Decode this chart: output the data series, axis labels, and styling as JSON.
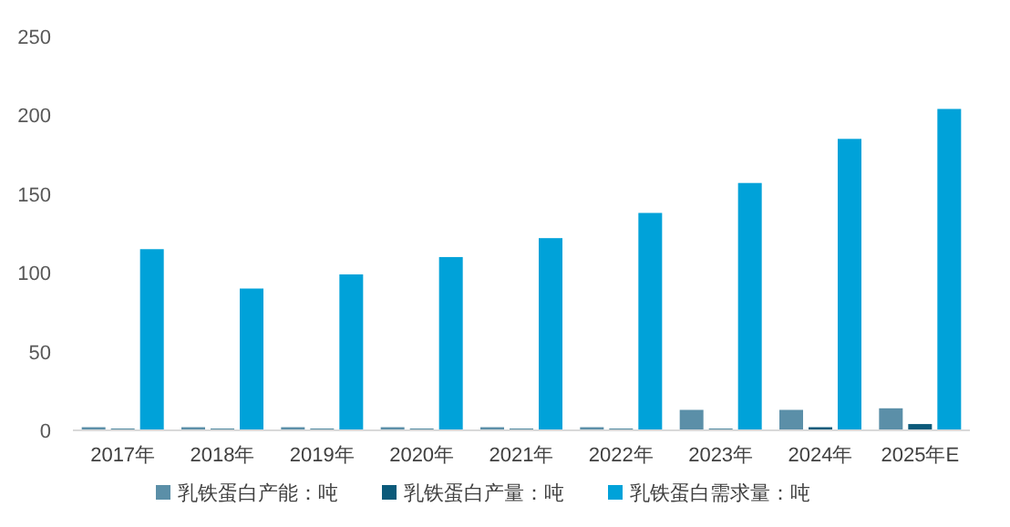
{
  "chart_data": {
    "type": "bar",
    "categories": [
      "2017年",
      "2018年",
      "2019年",
      "2020年",
      "2021年",
      "2022年",
      "2023年",
      "2024年",
      "2025年E"
    ],
    "series": [
      {
        "name": "乳铁蛋白产能：吨",
        "color": "#5b8fa8",
        "values": [
          2,
          2,
          2,
          2,
          2,
          2,
          13,
          13,
          14
        ]
      },
      {
        "name": "乳铁蛋白产量：吨",
        "color": "#0b5a7a",
        "values": [
          1,
          1,
          1,
          1,
          1,
          1,
          1,
          2,
          4
        ]
      },
      {
        "name": "乳铁蛋白需求量：吨",
        "color": "#00a2d9",
        "values": [
          115,
          90,
          99,
          110,
          122,
          138,
          157,
          185,
          204
        ]
      }
    ],
    "ylim": [
      0,
      250
    ],
    "yticks": [
      0,
      50,
      100,
      150,
      200,
      250
    ],
    "grid": false,
    "legend": "bottom"
  }
}
